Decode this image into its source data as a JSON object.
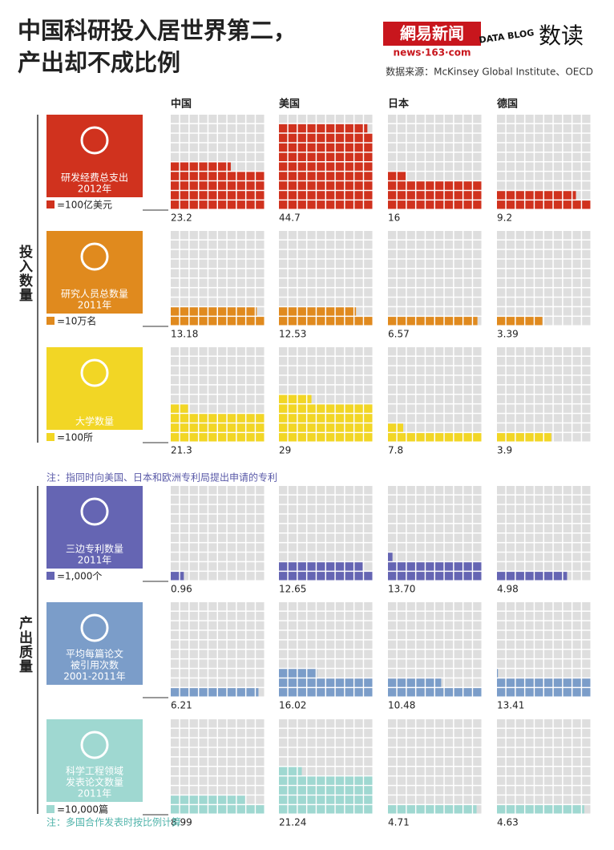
{
  "header": {
    "title_line1": "中国科研投入居世界第二，",
    "title_line2": "产出却不成比例",
    "logo_main": "網易新闻",
    "logo_sub": "news·163·com",
    "logo_blog": "DATA BLOG",
    "logo_read": "数读",
    "source": "数据来源：McKinsey Global Institute、OECD"
  },
  "columns": [
    "中国",
    "美国",
    "日本",
    "德国"
  ],
  "sections": [
    {
      "label": "投入数量",
      "rows": [
        {
          "label": [
            "研发经费总支出",
            "2012年"
          ],
          "unit": "=100亿美元",
          "color": "#d0321e",
          "values": [
            23.2,
            44.7,
            16,
            9.2
          ]
        },
        {
          "label": [
            "研究人员总数量",
            "2011年"
          ],
          "unit": "=10万名",
          "color": "#e08a1e",
          "values": [
            13.18,
            12.53,
            6.57,
            3.39
          ]
        },
        {
          "label": [
            "大学数量"
          ],
          "unit": "=100所",
          "color": "#f2d625",
          "values": [
            21.3,
            29,
            7.8,
            3.9
          ]
        }
      ]
    },
    {
      "label": "产出质量",
      "rows": [
        {
          "label": [
            "三边专利数量",
            "2011年"
          ],
          "unit": "=1,000个",
          "color": "#6565b3",
          "values": [
            0.96,
            12.65,
            13.7,
            4.98
          ],
          "value_labels": [
            "0.96",
            "12.65",
            "13.70",
            "4.98"
          ]
        },
        {
          "label": [
            "平均每篇论文",
            "被引用次数",
            "2001-2011年"
          ],
          "unit": "",
          "color": "#7b9dc9",
          "values": [
            6.21,
            16.02,
            10.48,
            13.41
          ]
        },
        {
          "label": [
            "科学工程领域",
            "发表论文数量",
            "2011年"
          ],
          "unit": "=10,000篇",
          "color": "#9fd8d1",
          "values": [
            8.99,
            21.24,
            4.71,
            4.63
          ]
        }
      ]
    }
  ],
  "notes": [
    "注：指同时向美国、日本和欧洲专利局提出申请的专利",
    "注：多国合作发表时按比例计算"
  ]
}
